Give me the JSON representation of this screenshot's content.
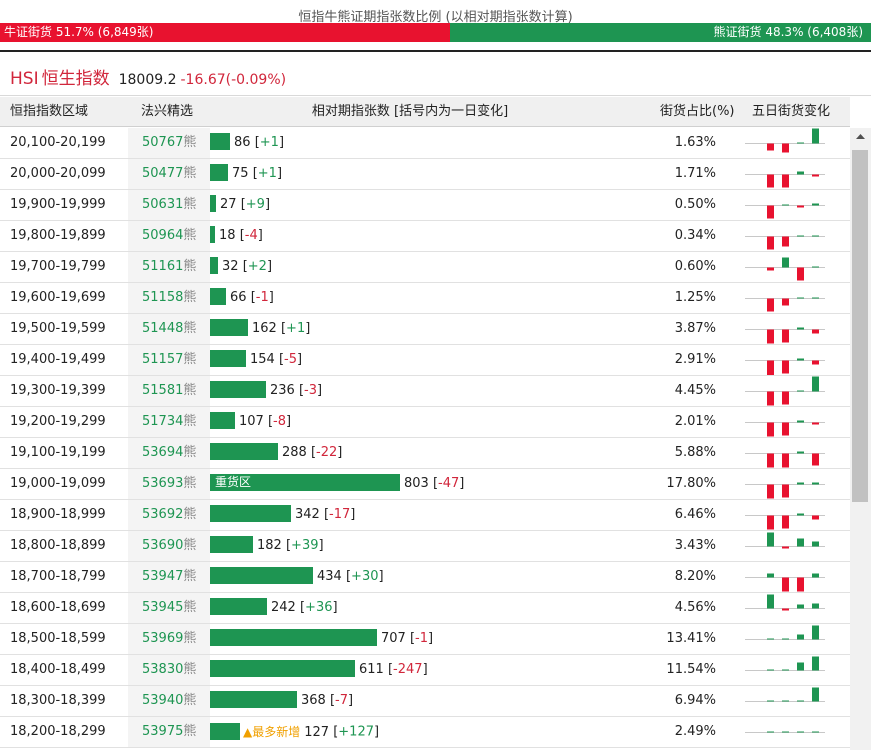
{
  "ratio": {
    "title": "恒指牛熊证期指张数比例 (以相对期指张数计算)",
    "bull_label": "牛证街货 51.7% (6,849张)",
    "bear_label": "熊证街货 48.3% (6,408张)",
    "bull_fraction": 0.517
  },
  "index": {
    "code": "HSI",
    "name": "恒生指数",
    "price": "18009.2",
    "change": "-16.67(-0.09%)"
  },
  "header": {
    "range": "恒指指数区域",
    "code": "法兴精选",
    "bar": "相对期指张数 [括号内为一日变化]",
    "pct": "街货占比(%)",
    "chg": "五日街货变化"
  },
  "colors": {
    "bull": "#e8122f",
    "bear": "#1e9552",
    "tag": "#f0a000"
  },
  "scale_max": 803,
  "rows": [
    {
      "range": "20,100-20,199",
      "code": "50767",
      "suffix": "熊",
      "count": 86,
      "count_text": "86",
      "delta": "+1",
      "pct": "1.63%",
      "label": "",
      "tag": "",
      "spark": [
        -7,
        -9,
        0,
        15,
        2
      ]
    },
    {
      "range": "20,000-20,099",
      "code": "50477",
      "suffix": "熊",
      "count": 75,
      "count_text": "75",
      "delta": "+1",
      "pct": "1.71%",
      "label": "",
      "tag": "",
      "spark": [
        -13,
        -13,
        3,
        -2,
        1
      ]
    },
    {
      "range": "19,900-19,999",
      "code": "50631",
      "suffix": "熊",
      "count": 27,
      "count_text": "27",
      "delta": "+9",
      "pct": "0.50%",
      "label": "",
      "tag": "",
      "spark": [
        -13,
        0,
        -2,
        2,
        4
      ]
    },
    {
      "range": "19,800-19,899",
      "code": "50964",
      "suffix": "熊",
      "count": 18,
      "count_text": "18",
      "delta": "-4",
      "pct": "0.34%",
      "label": "",
      "tag": "",
      "spark": [
        -13,
        -10,
        0,
        0,
        -4
      ]
    },
    {
      "range": "19,700-19,799",
      "code": "51161",
      "suffix": "熊",
      "count": 32,
      "count_text": "32",
      "delta": "+2",
      "pct": "0.60%",
      "label": "",
      "tag": "",
      "spark": [
        -3,
        10,
        -13,
        0,
        3
      ]
    },
    {
      "range": "19,600-19,699",
      "code": "51158",
      "suffix": "熊",
      "count": 66,
      "count_text": "66",
      "delta": "-1",
      "pct": "1.25%",
      "label": "",
      "tag": "",
      "spark": [
        -13,
        -7,
        0,
        1,
        0
      ]
    },
    {
      "range": "19,500-19,599",
      "code": "51448",
      "suffix": "熊",
      "count": 162,
      "count_text": "162",
      "delta": "+1",
      "pct": "3.87%",
      "label": "",
      "tag": "",
      "spark": [
        -14,
        -13,
        2,
        -4,
        1
      ]
    },
    {
      "range": "19,400-19,499",
      "code": "51157",
      "suffix": "熊",
      "count": 154,
      "count_text": "154",
      "delta": "-5",
      "pct": "2.91%",
      "label": "",
      "tag": "",
      "spark": [
        -15,
        -13,
        2,
        -4,
        -1
      ]
    },
    {
      "range": "19,300-19,399",
      "code": "51581",
      "suffix": "熊",
      "count": 236,
      "count_text": "236",
      "delta": "-3",
      "pct": "4.45%",
      "label": "",
      "tag": "",
      "spark": [
        -14,
        -13,
        0,
        15,
        -1
      ]
    },
    {
      "range": "19,200-19,299",
      "code": "51734",
      "suffix": "熊",
      "count": 107,
      "count_text": "107",
      "delta": "-8",
      "pct": "2.01%",
      "label": "",
      "tag": "",
      "spark": [
        -14,
        -13,
        2,
        -2,
        -2
      ]
    },
    {
      "range": "19,100-19,199",
      "code": "53694",
      "suffix": "熊",
      "count": 288,
      "count_text": "288",
      "delta": "-22",
      "pct": "5.88%",
      "label": "",
      "tag": "",
      "spark": [
        -14,
        -14,
        2,
        -12,
        -7
      ]
    },
    {
      "range": "19,000-19,099",
      "code": "53693",
      "suffix": "熊",
      "count": 803,
      "count_text": "803",
      "delta": "-47",
      "pct": "17.80%",
      "label": "重货区",
      "tag": "",
      "spark": [
        -14,
        -13,
        2,
        2,
        -10
      ]
    },
    {
      "range": "18,900-18,999",
      "code": "53692",
      "suffix": "熊",
      "count": 342,
      "count_text": "342",
      "delta": "-17",
      "pct": "6.46%",
      "label": "",
      "tag": "",
      "spark": [
        -14,
        -13,
        2,
        -4,
        -1
      ]
    },
    {
      "range": "18,800-18,899",
      "code": "53690",
      "suffix": "熊",
      "count": 182,
      "count_text": "182",
      "delta": "+39",
      "pct": "3.43%",
      "label": "",
      "tag": "",
      "spark": [
        14,
        -2,
        8,
        5,
        7
      ]
    },
    {
      "range": "18,700-18,799",
      "code": "53947",
      "suffix": "熊",
      "count": 434,
      "count_text": "434",
      "delta": "+30",
      "pct": "8.20%",
      "label": "",
      "tag": "",
      "spark": [
        4,
        -14,
        -14,
        4,
        3
      ]
    },
    {
      "range": "18,600-18,699",
      "code": "53945",
      "suffix": "熊",
      "count": 242,
      "count_text": "242",
      "delta": "+36",
      "pct": "4.56%",
      "label": "",
      "tag": "",
      "spark": [
        14,
        -2,
        4,
        5,
        7
      ]
    },
    {
      "range": "18,500-18,599",
      "code": "53969",
      "suffix": "熊",
      "count": 707,
      "count_text": "707",
      "delta": "-1",
      "pct": "13.41%",
      "label": "",
      "tag": "",
      "spark": [
        0,
        0,
        5,
        14,
        -1
      ]
    },
    {
      "range": "18,400-18,499",
      "code": "53830",
      "suffix": "熊",
      "count": 611,
      "count_text": "611",
      "delta": "-247",
      "pct": "11.54%",
      "label": "",
      "tag": "",
      "spark": [
        0,
        0,
        8,
        14,
        -8
      ]
    },
    {
      "range": "18,300-18,399",
      "code": "53940",
      "suffix": "熊",
      "count": 368,
      "count_text": "368",
      "delta": "-7",
      "pct": "6.94%",
      "label": "",
      "tag": "",
      "spark": [
        0,
        0,
        0,
        14,
        -7
      ]
    },
    {
      "range": "18,200-18,299",
      "code": "53975",
      "suffix": "熊",
      "count": 127,
      "count_text": "127",
      "delta": "+127",
      "pct": "2.49%",
      "label": "",
      "tag": "▲最多新增",
      "spark": [
        0,
        0,
        0,
        0,
        14
      ]
    }
  ]
}
